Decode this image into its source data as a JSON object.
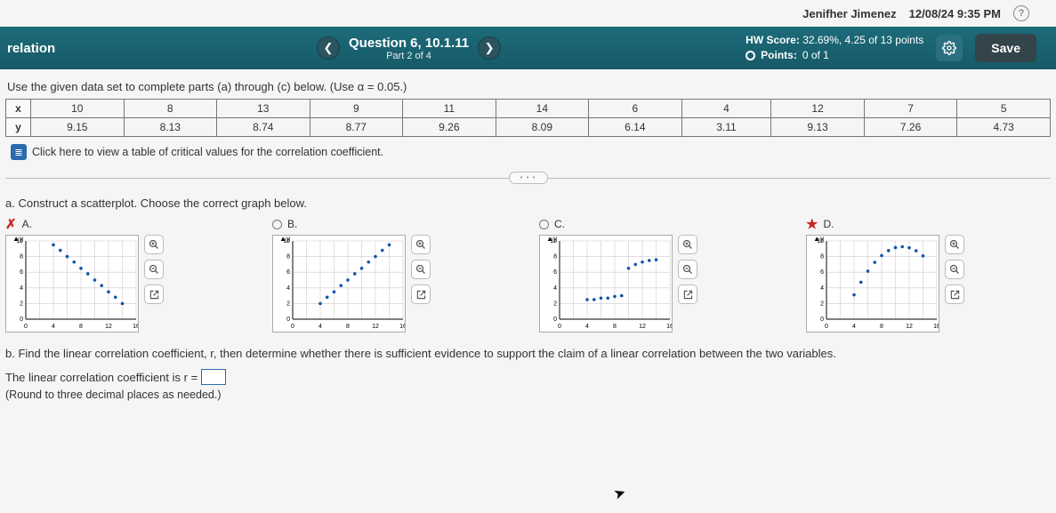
{
  "user": {
    "name": "Jenifher Jimenez",
    "datetime": "12/08/24 9:35 PM"
  },
  "header": {
    "crumb": "relation",
    "question_title": "Question 6, 10.1.11",
    "question_sub": "Part 2 of 4",
    "hw_label": "HW Score:",
    "hw_value": "32.69%, 4.25 of 13 points",
    "pts_label": "Points:",
    "pts_value": "0 of 1",
    "save": "Save"
  },
  "instruction": "Use the given data set to complete parts (a) through (c) below. (Use α = 0.05.)",
  "table": {
    "x_head": "x",
    "y_head": "y",
    "x": [
      "10",
      "8",
      "13",
      "9",
      "11",
      "14",
      "6",
      "4",
      "12",
      "7",
      "5"
    ],
    "y": [
      "9.15",
      "8.13",
      "8.74",
      "8.77",
      "9.26",
      "8.09",
      "6.14",
      "3.11",
      "9.13",
      "7.26",
      "4.73"
    ]
  },
  "link_text": "Click here to view a table of critical values for the correlation coefficient.",
  "partA_text": "a. Construct a scatterplot. Choose the correct graph below.",
  "options": {
    "A": {
      "letter": "A.",
      "mark": "✗",
      "selected": true
    },
    "B": {
      "letter": "B."
    },
    "C": {
      "letter": "C."
    },
    "D": {
      "letter": "D.",
      "mark": "★",
      "correct": true
    }
  },
  "graph": {
    "xmin": 0,
    "xmax": 16,
    "ymin": 0,
    "ymax": 10,
    "xticks": [
      "0",
      "4",
      "8",
      "12",
      "16"
    ],
    "yticks": [
      "0",
      "2",
      "4",
      "6",
      "8",
      "10"
    ],
    "width": 150,
    "height": 110,
    "grid_color": "#cccccc",
    "axis_color": "#333333",
    "point_color": "#1155aa",
    "point_radius": 1.8,
    "A": [
      [
        4,
        9.5
      ],
      [
        5,
        8.8
      ],
      [
        6,
        8
      ],
      [
        7,
        7.3
      ],
      [
        8,
        6.5
      ],
      [
        9,
        5.8
      ],
      [
        10,
        5
      ],
      [
        11,
        4.3
      ],
      [
        12,
        3.5
      ],
      [
        13,
        2.8
      ],
      [
        14,
        2
      ]
    ],
    "B": [
      [
        4,
        2
      ],
      [
        5,
        2.8
      ],
      [
        6,
        3.5
      ],
      [
        7,
        4.3
      ],
      [
        8,
        5
      ],
      [
        9,
        5.8
      ],
      [
        10,
        6.5
      ],
      [
        11,
        7.3
      ],
      [
        12,
        8
      ],
      [
        13,
        8.8
      ],
      [
        14,
        9.5
      ]
    ],
    "C": [
      [
        4,
        2.5
      ],
      [
        5,
        2.5
      ],
      [
        6,
        2.7
      ],
      [
        7,
        2.7
      ],
      [
        8,
        2.9
      ],
      [
        9,
        3
      ],
      [
        10,
        6.5
      ],
      [
        11,
        7
      ],
      [
        12,
        7.3
      ],
      [
        13,
        7.5
      ],
      [
        14,
        7.6
      ]
    ],
    "D": [
      [
        4,
        3.11
      ],
      [
        5,
        4.73
      ],
      [
        6,
        6.14
      ],
      [
        7,
        7.26
      ],
      [
        8,
        8.13
      ],
      [
        9,
        8.77
      ],
      [
        10,
        9.15
      ],
      [
        11,
        9.26
      ],
      [
        12,
        9.13
      ],
      [
        13,
        8.74
      ],
      [
        14,
        8.09
      ]
    ]
  },
  "partB_text": "b. Find the linear correlation coefficient, r, then determine whether there is sufficient evidence to support the claim of a linear correlation between the two variables.",
  "eq_prefix": "The linear correlation coefficient is r =",
  "round_note": "(Round to three decimal places as needed.)"
}
